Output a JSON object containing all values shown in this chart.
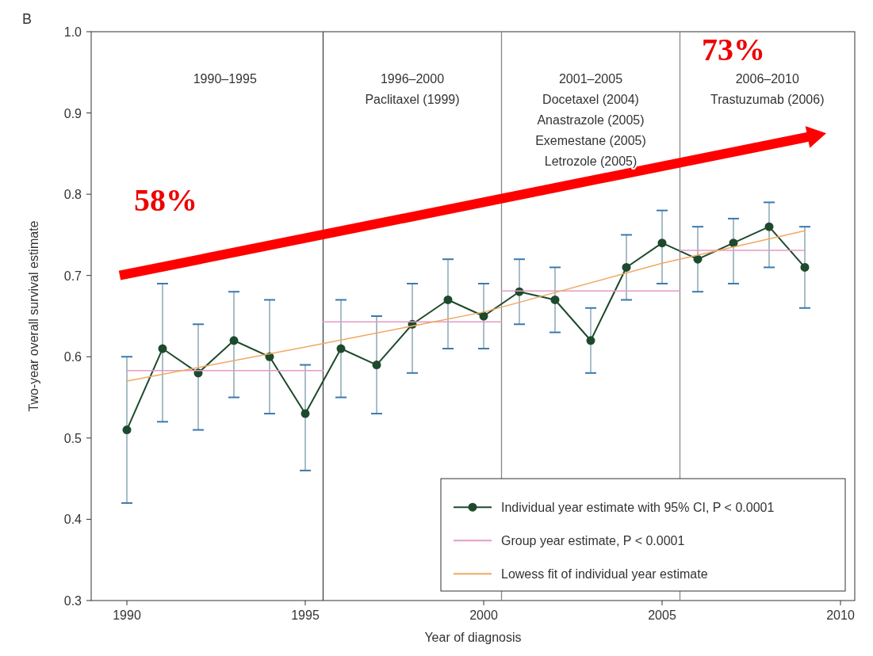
{
  "chart_data": {
    "type": "line",
    "xlabel": "Year of diagnosis",
    "ylabel": "Two-year overall survival estimate",
    "xlim": [
      1989,
      2010.4
    ],
    "xticks": [
      1990,
      1995,
      2000,
      2005,
      2010
    ],
    "ylim": [
      0.3,
      1.0
    ],
    "yticks": [
      0.3,
      0.4,
      0.5,
      0.6,
      0.7,
      0.8,
      0.9,
      {
        "value": 1.0,
        "label": "1.0"
      }
    ],
    "grid": false,
    "legend": "bottom right",
    "series": [
      {
        "name": "Individual year estimate with 95% CI, P < 0.0001",
        "color": "#1d4a2c",
        "marker": "circle",
        "x": [
          1990,
          1991,
          1992,
          1993,
          1994,
          1995,
          1996,
          1997,
          1998,
          1999,
          2000,
          2001,
          2002,
          2003,
          2004,
          2005,
          2006,
          2007,
          2008,
          2009
        ],
        "values": [
          0.51,
          0.61,
          0.58,
          0.62,
          0.6,
          0.53,
          0.61,
          0.59,
          0.64,
          0.67,
          0.65,
          0.68,
          0.67,
          0.62,
          0.71,
          0.74,
          0.72,
          0.74,
          0.76,
          0.71
        ],
        "errors": [
          [
            0.42,
            0.6
          ],
          [
            0.52,
            0.69
          ],
          [
            0.51,
            0.64
          ],
          [
            0.55,
            0.68
          ],
          [
            0.53,
            0.67
          ],
          [
            0.46,
            0.59
          ],
          [
            0.55,
            0.67
          ],
          [
            0.53,
            0.65
          ],
          [
            0.58,
            0.69
          ],
          [
            0.61,
            0.72
          ],
          [
            0.61,
            0.69
          ],
          [
            0.64,
            0.72
          ],
          [
            0.63,
            0.71
          ],
          [
            0.58,
            0.66
          ],
          [
            0.67,
            0.75
          ],
          [
            0.69,
            0.78
          ],
          [
            0.68,
            0.76
          ],
          [
            0.69,
            0.77
          ],
          [
            0.71,
            0.79
          ],
          [
            0.66,
            0.76
          ]
        ]
      },
      {
        "name": "Group year estimate, P < 0.0001",
        "color": "#e49ac8",
        "marker": "none",
        "x": [
          1990,
          1995.5
        ],
        "values": [
          0.583,
          0.583
        ]
      },
      {
        "color": "#e49ac8",
        "marker": "none",
        "x": [
          1995.5,
          2000.5
        ],
        "values": [
          0.643,
          0.643
        ]
      },
      {
        "color": "#e49ac8",
        "marker": "none",
        "x": [
          2000.5,
          2005.5
        ],
        "values": [
          0.681,
          0.681
        ]
      },
      {
        "color": "#e49ac8",
        "marker": "none",
        "x": [
          2005.5,
          2009
        ],
        "values": [
          0.731,
          0.731
        ]
      },
      {
        "name": "Lowess fit of individual year estimate",
        "color": "#f0a860",
        "marker": "none",
        "x": [
          1990,
          1995,
          2000,
          2005,
          2009
        ],
        "values": [
          0.57,
          0.612,
          0.655,
          0.715,
          0.755
        ]
      }
    ],
    "ref_lines": [
      {
        "axis": "x",
        "value": 1995.5,
        "color": "#444444"
      },
      {
        "axis": "x",
        "value": 2000.5,
        "color": "#888888"
      },
      {
        "axis": "x",
        "value": 2005.5,
        "color": "#888888"
      }
    ],
    "annotations": [
      "B",
      "1990–1995",
      "1996–2000\nPaclitaxel (1999)",
      "2001–2005\nDocetaxel (2004)\nAnastrazole (2005)\nExemestane (2005)\nLetrozole (2005)",
      "2006–2010\nTrastuzumab (2006)",
      "58%",
      "73%"
    ]
  }
}
